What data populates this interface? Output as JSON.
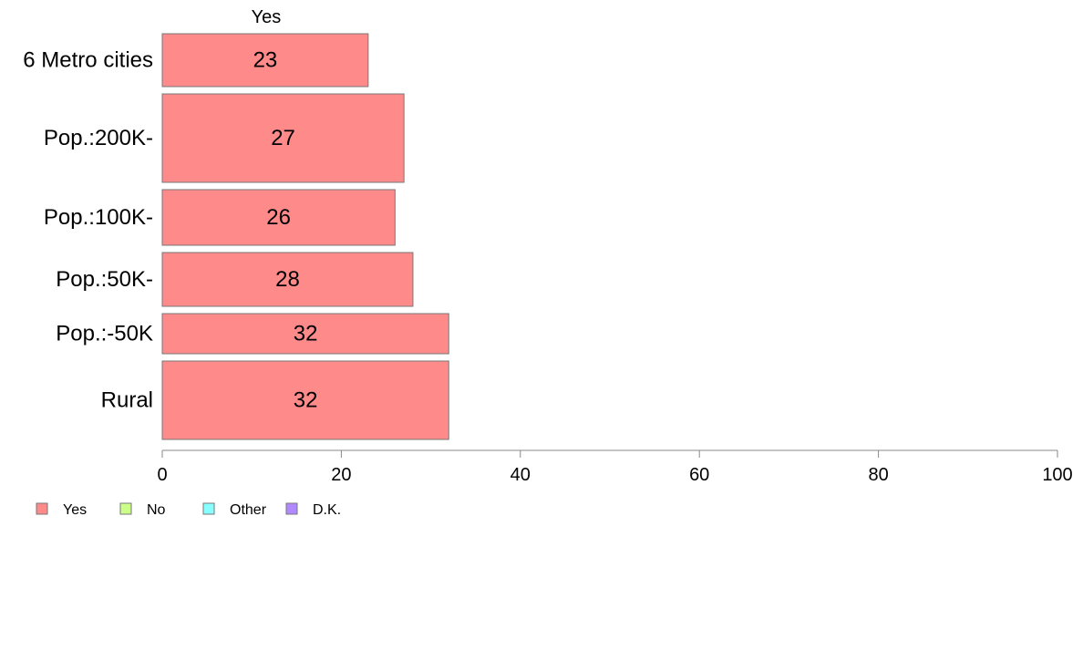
{
  "chart_data": {
    "type": "bar",
    "orientation": "horizontal",
    "series_header": "Yes",
    "categories": [
      "6 Metro cities",
      "Pop.:200K-",
      "Pop.:100K-",
      "Pop.:50K-",
      "Pop.:-50K",
      "Rural"
    ],
    "series": [
      {
        "name": "Yes",
        "values": [
          23,
          27,
          26,
          28,
          32,
          32
        ],
        "color": "#ff8a8a"
      }
    ],
    "value_labels": [
      "23",
      "27",
      "26",
      "28",
      "32",
      "32"
    ],
    "xlim": [
      0,
      100
    ],
    "xticks": [
      0,
      20,
      40,
      60,
      80,
      100
    ],
    "xtick_labels": [
      "0",
      "20",
      "40",
      "60",
      "80",
      "100"
    ],
    "grid": false,
    "legend_position": "bottom-left",
    "legend": [
      {
        "label": "Yes",
        "color": "#ff8a8a"
      },
      {
        "label": "No",
        "color": "#ccff88"
      },
      {
        "label": "Other",
        "color": "#88ffff"
      },
      {
        "label": "D.K.",
        "color": "#b088ff"
      }
    ],
    "bar_stroke": "#777777",
    "axis_color": "#888888"
  }
}
